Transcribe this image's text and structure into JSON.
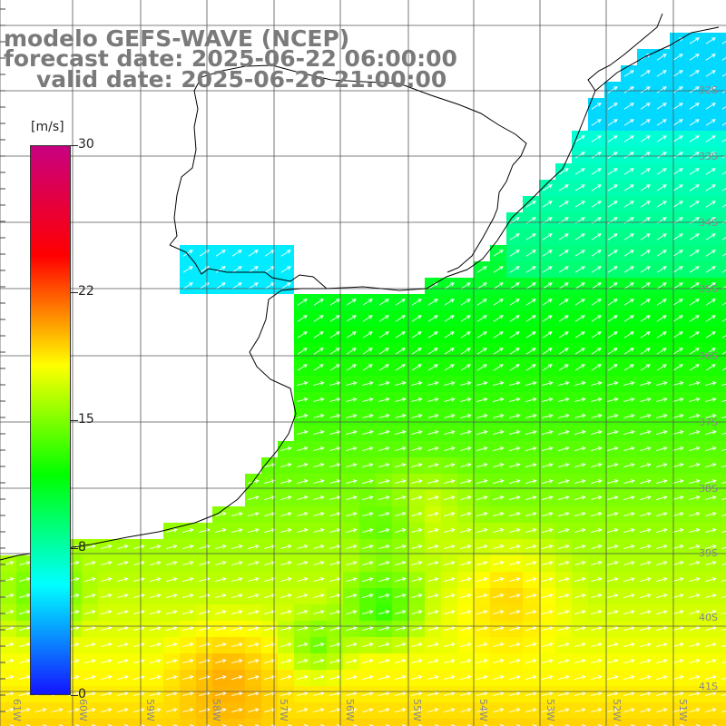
{
  "title": {
    "line1": "modelo GEFS-WAVE (NCEP)",
    "line2": "forecast date: 2025-06-22 06:00:00",
    "line3": "valid date: 2025-06-26 21:00:00"
  },
  "colorbar": {
    "unit": "[m/s]",
    "ticks": [
      "30",
      "22",
      "15",
      "8",
      "0"
    ],
    "tick_values": [
      30,
      22,
      15,
      8,
      0
    ],
    "min": 0,
    "max": 30,
    "colors": [
      "#1414ff",
      "#00ffff",
      "#00ff00",
      "#ffff00",
      "#ff0000",
      "#c80080"
    ]
  },
  "map": {
    "region": "Rio de la Plata / South-West Atlantic",
    "lon_range": [
      -61,
      -50
    ],
    "lat_range": [
      -41,
      -31
    ],
    "lat_labels": [
      "32S",
      "33S",
      "34S",
      "35S",
      "36S",
      "37S",
      "38S",
      "39S",
      "40S",
      "41S"
    ],
    "lon_labels": [
      "61W",
      "60W",
      "59W",
      "58W",
      "57W",
      "56W",
      "55W",
      "54W",
      "53W",
      "52W",
      "51W"
    ],
    "vector_color": "#ffffff",
    "coast_color": "#000000",
    "grid_color": "#555555"
  }
}
